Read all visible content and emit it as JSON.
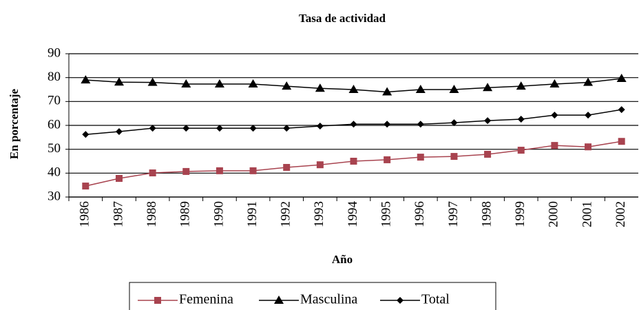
{
  "chart_data": {
    "type": "line",
    "title": "Tasa de actividad",
    "x_label": "Año",
    "y_label": "En porcentaje",
    "categories": [
      "1986",
      "1987",
      "1988",
      "1989",
      "1990",
      "1991",
      "1992",
      "1993",
      "1994",
      "1995",
      "1996",
      "1997",
      "1998",
      "1999",
      "2000",
      "2001",
      "2002"
    ],
    "series": [
      {
        "name": "Femenina",
        "color": "#a8434f",
        "marker": "square",
        "values": [
          34.6,
          37.8,
          40.1,
          40.7,
          41.0,
          41.0,
          42.4,
          43.5,
          45.0,
          45.6,
          46.7,
          47.0,
          47.9,
          49.6,
          51.6,
          51.0,
          53.3
        ]
      },
      {
        "name": "Masculina",
        "color": "#000000",
        "marker": "triangle",
        "values": [
          79.0,
          78.1,
          78.0,
          77.3,
          77.3,
          77.3,
          76.4,
          75.5,
          75.0,
          74.0,
          75.0,
          75.0,
          75.8,
          76.4,
          77.3,
          78.0,
          79.6
        ]
      },
      {
        "name": "Total",
        "color": "#000000",
        "marker": "diamond",
        "values": [
          56.2,
          57.4,
          58.8,
          58.8,
          58.8,
          58.8,
          58.8,
          59.7,
          60.5,
          60.5,
          60.5,
          61.1,
          62.0,
          62.6,
          64.3,
          64.3,
          66.6
        ]
      }
    ],
    "ylim": [
      30,
      90
    ],
    "yticks": [
      30,
      40,
      50,
      60,
      70,
      80,
      90
    ],
    "grid": true
  }
}
